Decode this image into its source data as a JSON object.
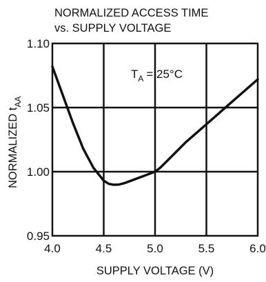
{
  "chart_data": {
    "type": "line",
    "title_line1": "NORMALIZED ACCESS TIME",
    "title_line2": "vs. SUPPLY VOLTAGE",
    "xlabel": "SUPPLY VOLTAGE (V)",
    "ylabel_main": "NORMALIZED t",
    "ylabel_sub": "AA",
    "xlim": [
      4.0,
      6.0
    ],
    "ylim": [
      0.95,
      1.1
    ],
    "xticks": [
      4.0,
      4.5,
      5.0,
      5.5,
      6.0
    ],
    "xtick_labels": [
      "4.0",
      "4.5",
      "5.0",
      "5.5",
      "6.0"
    ],
    "yticks": [
      0.95,
      1.0,
      1.05,
      1.1
    ],
    "ytick_labels": [
      "0.95",
      "1.00",
      "1.05",
      "1.10"
    ],
    "grid": true,
    "annotation": {
      "main": "T",
      "sub": "A",
      "rest": "=  25°C"
    },
    "series": [
      {
        "x": [
          4.0,
          4.1,
          4.2,
          4.3,
          4.4,
          4.5,
          4.55,
          4.6,
          4.65,
          4.7,
          4.8,
          4.9,
          5.0,
          5.05,
          5.1,
          5.2,
          5.3,
          5.4,
          5.5,
          5.6,
          5.7,
          5.8,
          5.9,
          6.0
        ],
        "y": [
          1.082,
          1.06,
          1.038,
          1.018,
          1.003,
          0.993,
          0.9905,
          0.9898,
          0.99,
          0.991,
          0.994,
          0.997,
          1.0,
          1.003,
          1.007,
          1.015,
          1.023,
          1.03,
          1.037,
          1.044,
          1.051,
          1.058,
          1.065,
          1.072
        ]
      }
    ]
  }
}
